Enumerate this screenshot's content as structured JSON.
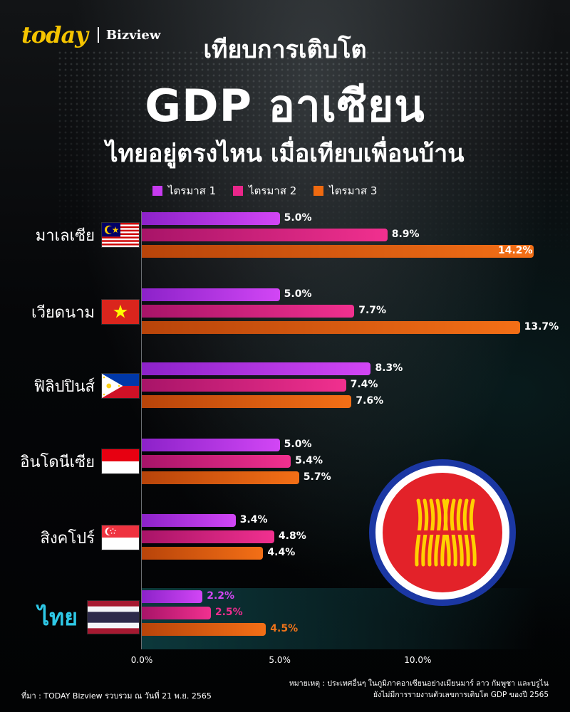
{
  "brand": {
    "name": "today",
    "sub": "Bizview"
  },
  "header": {
    "line1": "เทียบการเติบโต",
    "line2": "GDP อาเซียน",
    "line3": "ไทยอยู่ตรงไหน เมื่อเทียบเพื่อนบ้าน"
  },
  "colors": {
    "q1": "#c73bef",
    "q2": "#e9268a",
    "q3": "#ef6a10",
    "thai_name": "#2ec8e6"
  },
  "chart_data": {
    "type": "bar",
    "orientation": "horizontal",
    "categories": [
      "มาเลเซีย",
      "เวียดนาม",
      "ฟิลิปปินส์",
      "อินโดนีเซีย",
      "สิงคโปร์",
      "ไทย"
    ],
    "series": [
      {
        "name": "ไตรมาส 1",
        "values": [
          5.0,
          5.0,
          8.3,
          5.0,
          3.4,
          2.2
        ],
        "labels": [
          "5.0%",
          "5.0%",
          "8.3%",
          "5.0%",
          "3.4%",
          "2.2%"
        ]
      },
      {
        "name": "ไตรมาส 2",
        "values": [
          8.9,
          7.7,
          7.4,
          5.4,
          4.8,
          2.5
        ],
        "labels": [
          "8.9%",
          "7.7%",
          "7.4%",
          "5.4%",
          "4.8%",
          "2.5%"
        ]
      },
      {
        "name": "ไตรมาส 3",
        "values": [
          14.2,
          13.7,
          7.6,
          5.7,
          4.4,
          4.5
        ],
        "labels": [
          "14.2%",
          "13.7%",
          "7.6%",
          "5.7%",
          "4.4%",
          "4.5%"
        ]
      }
    ],
    "xlim": [
      0,
      14.2
    ],
    "xticks": [
      "0.0%",
      "5.0%",
      "10.0%"
    ],
    "legend": "top",
    "highlight_category": "ไทย"
  },
  "flags": [
    "malaysia-flag",
    "vietnam-flag",
    "philippines-flag",
    "indonesia-flag",
    "singapore-flag",
    "thailand-flag"
  ],
  "asean_logo": "asean-emblem",
  "footer": {
    "source": "ที่มา : TODAY Bizview รวบรวม ณ วันที่ 21 พ.ย. 2565",
    "note1": "หมายเหตุ : ประเทศอื่นๆ ในภูมิภาคอาเซียนอย่างเมียนมาร์ ลาว กัมพูชา และบรูไน",
    "note2": "ยังไม่มีการรายงานตัวเลขการเติบโต GDP ของปี 2565"
  }
}
